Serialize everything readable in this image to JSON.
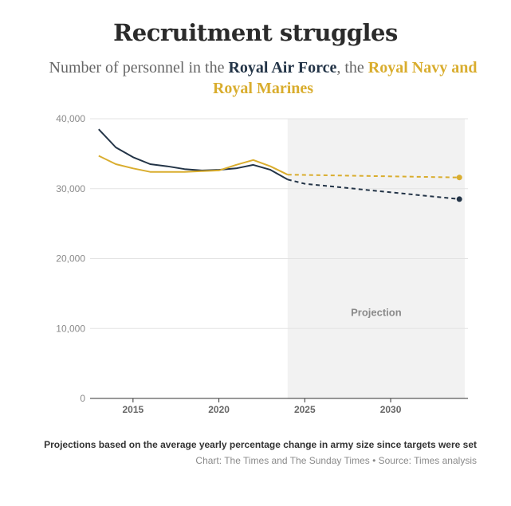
{
  "chart_data": {
    "type": "line",
    "title": "Recruitment struggles",
    "subtitle_prefix": "Number of personnel in the ",
    "subtitle_series1": "Royal Air Force",
    "subtitle_mid": ", the ",
    "subtitle_series2": "Royal Navy and Royal Marines",
    "xlabel": "",
    "ylabel": "",
    "xlim": [
      2012.5,
      2034.5
    ],
    "ylim": [
      0,
      40000
    ],
    "y_ticks": [
      0,
      10000,
      20000,
      30000,
      40000
    ],
    "y_tick_labels": [
      "0",
      "10,000",
      "20,000",
      "30,000",
      "40,000"
    ],
    "x_ticks": [
      2015,
      2020,
      2025,
      2030
    ],
    "x_tick_labels": [
      "2015",
      "2020",
      "2025",
      "2030"
    ],
    "projection_start": 2024,
    "projection_end": 2034.4,
    "projection_label": "Projection",
    "series": [
      {
        "name": "Royal Air Force",
        "color": "#233447",
        "x": [
          2013,
          2014,
          2015,
          2016,
          2017,
          2018,
          2019,
          2020,
          2021,
          2022,
          2023,
          2024
        ],
        "values": [
          38500,
          35900,
          34500,
          33500,
          33200,
          32800,
          32600,
          32700,
          32900,
          33400,
          32700,
          31300
        ],
        "projection": {
          "x": [
            2024,
            2025,
            2034
          ],
          "values": [
            31300,
            30700,
            28500
          ]
        }
      },
      {
        "name": "Royal Navy and Royal Marines",
        "color": "#d9ad2e",
        "x": [
          2013,
          2014,
          2015,
          2016,
          2017,
          2018,
          2019,
          2020,
          2021,
          2022,
          2023,
          2024
        ],
        "values": [
          34700,
          33500,
          32900,
          32400,
          32400,
          32400,
          32500,
          32600,
          33400,
          34100,
          33200,
          32000
        ],
        "projection": {
          "x": [
            2024,
            2034
          ],
          "values": [
            32000,
            31600
          ]
        }
      }
    ]
  },
  "footer": {
    "note": "Projections based on the average yearly percentage change in army size since targets were set",
    "source": "Chart: The Times and The Sunday Times • Source: Times analysis"
  }
}
